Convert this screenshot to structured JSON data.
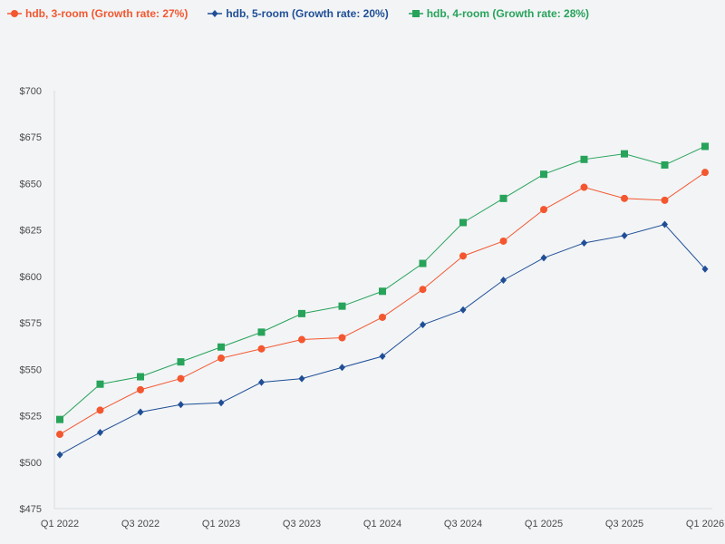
{
  "chart_data": {
    "type": "line",
    "title": "",
    "xlabel": "",
    "ylabel": "",
    "categories": [
      "Q1 2022",
      "Q2 2022",
      "Q3 2022",
      "Q4 2022",
      "Q1 2023",
      "Q2 2023",
      "Q3 2023",
      "Q4 2023",
      "Q1 2024",
      "Q2 2024",
      "Q3 2024",
      "Q4 2024",
      "Q1 2025",
      "Q2 2025",
      "Q3 2025",
      "Q4 2025",
      "Q1 2026"
    ],
    "tick_labels": [
      "Q1 2022",
      "Q3 2022",
      "Q1 2023",
      "Q3 2023",
      "Q1 2024",
      "Q3 2024",
      "Q1 2025",
      "Q3 2025",
      "Q1 2026"
    ],
    "ylim": [
      475,
      700
    ],
    "yticks": [
      475,
      500,
      525,
      550,
      575,
      600,
      625,
      650,
      675,
      700
    ],
    "ytick_labels": [
      "$475",
      "$500",
      "$525",
      "$550",
      "$575",
      "$600",
      "$625",
      "$650",
      "$675",
      "$700"
    ],
    "grid": false,
    "legend_position": "top-left",
    "series": [
      {
        "name": "hdb, 3-room (Growth rate: 27%)",
        "color": "#f4572f",
        "marker": "circle",
        "values": [
          515,
          528,
          539,
          545,
          556,
          561,
          566,
          567,
          578,
          593,
          611,
          619,
          636,
          648,
          642,
          641,
          656
        ]
      },
      {
        "name": "hdb, 5-room (Growth rate: 20%)",
        "color": "#1f4e96",
        "marker": "diamond",
        "values": [
          504,
          516,
          527,
          531,
          532,
          543,
          545,
          551,
          557,
          574,
          582,
          598,
          610,
          618,
          622,
          628,
          604
        ]
      },
      {
        "name": "hdb, 4-room (Growth rate: 28%)",
        "color": "#27a35a",
        "marker": "square",
        "values": [
          523,
          542,
          546,
          554,
          562,
          570,
          580,
          584,
          592,
          607,
          629,
          642,
          655,
          663,
          666,
          660,
          670
        ]
      }
    ]
  }
}
